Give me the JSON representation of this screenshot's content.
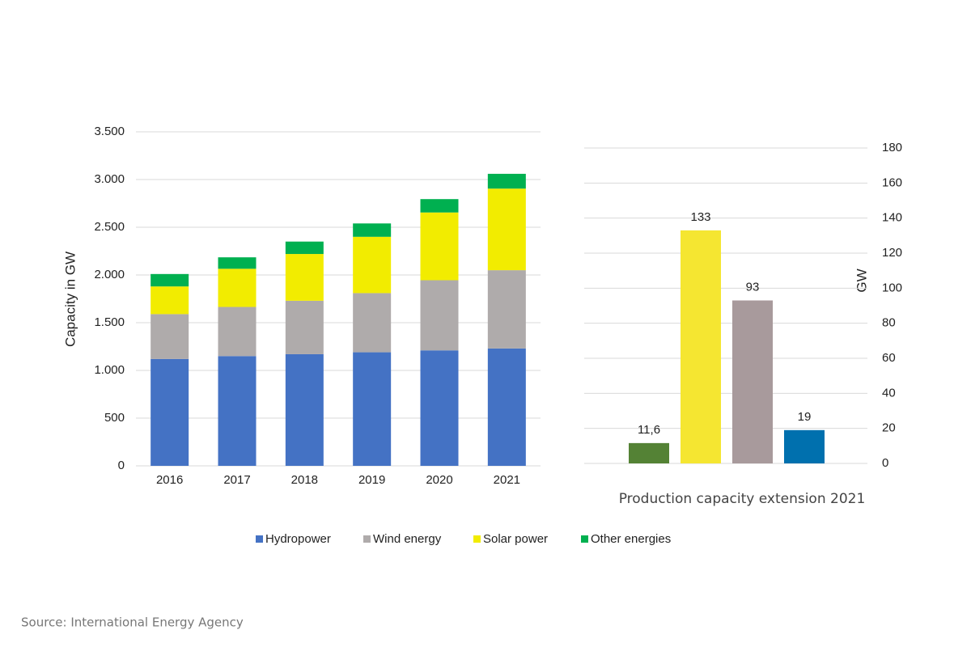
{
  "chart_data": [
    {
      "type": "stacked_bar",
      "y_label": "Capacity in GW",
      "categories": [
        "2016",
        "2017",
        "2018",
        "2019",
        "2020",
        "2021"
      ],
      "series": [
        {
          "name": "Hydropower",
          "color": "#4472c4",
          "values": [
            1120,
            1150,
            1170,
            1190,
            1210,
            1230
          ]
        },
        {
          "name": "Wind energy",
          "color": "#afabab",
          "values": [
            470,
            515,
            560,
            620,
            735,
            820
          ]
        },
        {
          "name": "Solar power",
          "color": "#f2ec00",
          "values": [
            290,
            400,
            490,
            590,
            710,
            855
          ]
        },
        {
          "name": "Other energies",
          "color": "#00b050",
          "values": [
            130,
            120,
            130,
            140,
            140,
            155
          ]
        }
      ],
      "ylim": [
        0,
        3500
      ],
      "yticks": [
        0,
        500,
        {
          "value": 1000,
          "label": "1.000"
        },
        {
          "value": 1500,
          "label": "1.500"
        },
        {
          "value": 2000,
          "label": "2.000"
        },
        {
          "value": 2500,
          "label": "2.500"
        },
        {
          "value": 3000,
          "label": "3.000"
        },
        {
          "value": 3500,
          "label": "3.500"
        }
      ],
      "grid": true,
      "legend": "bottom"
    },
    {
      "type": "bar",
      "x_label": "Production capacity extension 2021",
      "y_label": "GW",
      "y_axis_side": "right",
      "values": [
        11.6,
        133,
        93,
        19
      ],
      "value_labels": [
        "11,6",
        "133",
        "93",
        "19"
      ],
      "colors": [
        "#548235",
        "#f5e631",
        "#a89a9c",
        "#0070ae"
      ],
      "ylim": [
        0,
        180
      ],
      "yticks": [
        0,
        20,
        40,
        60,
        80,
        100,
        120,
        140,
        160,
        180
      ],
      "grid": true
    }
  ],
  "source": "Source: International Energy Agency"
}
